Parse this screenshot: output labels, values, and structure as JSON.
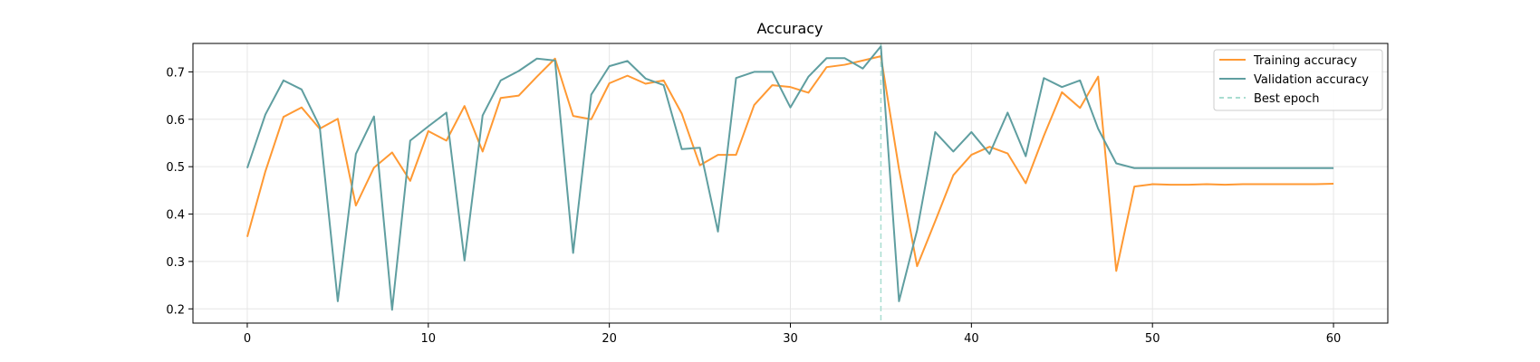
{
  "chart_data": {
    "type": "line",
    "title": "Accuracy",
    "xlabel": "",
    "ylabel": "",
    "xlim": [
      -3,
      63
    ],
    "ylim": [
      0.17,
      0.76
    ],
    "xticks": [
      0,
      10,
      20,
      30,
      40,
      50,
      60
    ],
    "yticks": [
      0.2,
      0.3,
      0.4,
      0.5,
      0.6,
      0.7
    ],
    "grid": true,
    "legend_position": "top-right",
    "x": [
      0,
      1,
      2,
      3,
      4,
      5,
      6,
      7,
      8,
      9,
      10,
      11,
      12,
      13,
      14,
      15,
      16,
      17,
      18,
      19,
      20,
      21,
      22,
      23,
      24,
      25,
      26,
      27,
      28,
      29,
      30,
      31,
      32,
      33,
      34,
      35,
      36,
      37,
      38,
      39,
      40,
      41,
      42,
      43,
      44,
      45,
      46,
      47,
      48,
      49,
      50,
      51,
      52,
      53,
      54,
      55,
      56,
      57,
      58,
      59,
      60
    ],
    "series": [
      {
        "name": "Training accuracy",
        "color": "#ff9933",
        "values": [
          0.352,
          0.49,
          0.605,
          0.625,
          0.58,
          0.601,
          0.418,
          0.498,
          0.53,
          0.47,
          0.575,
          0.555,
          0.628,
          0.532,
          0.645,
          0.65,
          0.69,
          0.728,
          0.607,
          0.6,
          0.676,
          0.692,
          0.675,
          0.682,
          0.612,
          0.503,
          0.525,
          0.525,
          0.63,
          0.672,
          0.668,
          0.656,
          0.71,
          0.715,
          0.724,
          0.733,
          0.495,
          0.29,
          0.385,
          0.482,
          0.525,
          0.542,
          0.528,
          0.465,
          0.565,
          0.657,
          0.624,
          0.69,
          0.28,
          0.458,
          0.463,
          0.462,
          0.462,
          0.463,
          0.462,
          0.463,
          0.463,
          0.463,
          0.463,
          0.463,
          0.464
        ]
      },
      {
        "name": "Validation accuracy",
        "color": "#5f9ea0",
        "values": [
          0.497,
          0.61,
          0.682,
          0.663,
          0.585,
          0.216,
          0.527,
          0.606,
          0.198,
          0.555,
          0.585,
          0.614,
          0.302,
          0.608,
          0.682,
          0.702,
          0.728,
          0.724,
          0.318,
          0.652,
          0.712,
          0.723,
          0.686,
          0.672,
          0.537,
          0.54,
          0.363,
          0.687,
          0.7,
          0.7,
          0.625,
          0.69,
          0.729,
          0.729,
          0.707,
          0.754,
          0.216,
          0.366,
          0.573,
          0.532,
          0.573,
          0.527,
          0.614,
          0.522,
          0.687,
          0.668,
          0.682,
          0.58,
          0.507,
          0.497,
          0.497,
          0.497,
          0.497,
          0.497,
          0.497,
          0.497,
          0.497,
          0.497,
          0.497,
          0.497,
          0.497
        ]
      }
    ],
    "markers": [
      {
        "name": "Best epoch",
        "type": "vline",
        "x": 35,
        "color": "#a8ddd0"
      }
    ]
  }
}
